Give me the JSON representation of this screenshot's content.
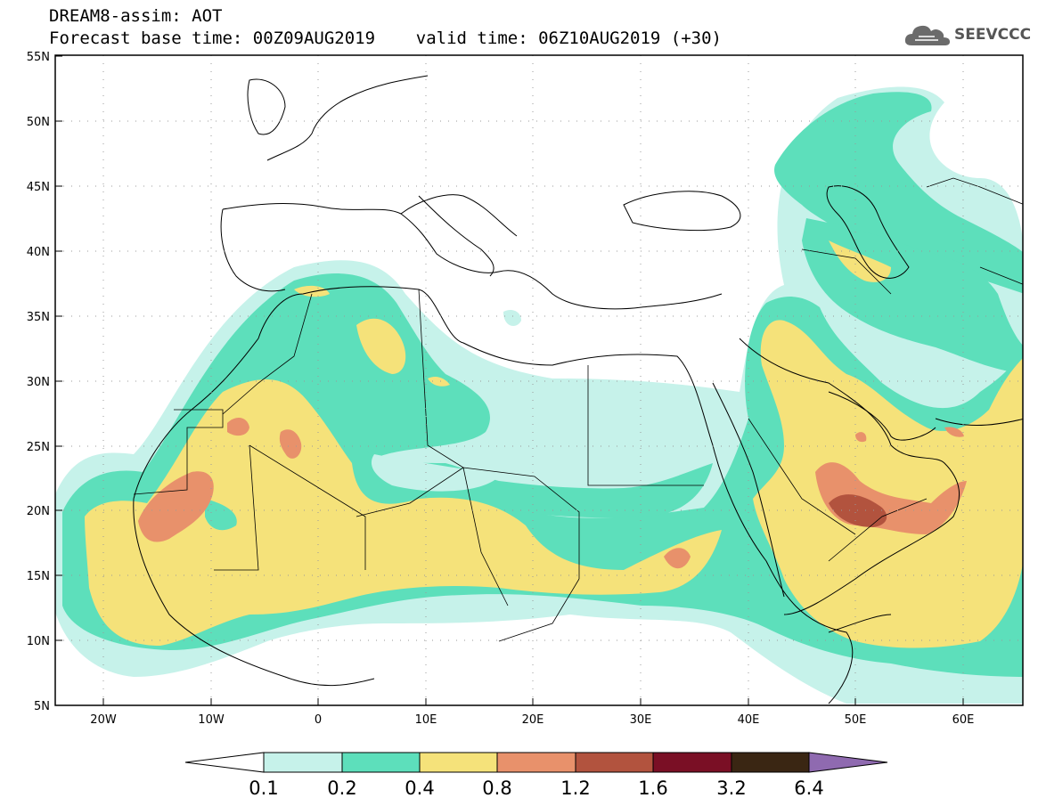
{
  "header": {
    "title_line1": "DREAM8-assim: AOT",
    "title_line2": "Forecast base time: 00Z09AUG2019    valid time: 06Z10AUG2019 (+30)",
    "logo_text": "SEEVCCC",
    "logo_icon": "cloud-icon"
  },
  "map": {
    "lat_labels": [
      "55N",
      "50N",
      "45N",
      "40N",
      "35N",
      "30N",
      "25N",
      "20N",
      "15N",
      "10N",
      "5N"
    ],
    "lon_labels": [
      "20W",
      "10W",
      "0",
      "10E",
      "20E",
      "30E",
      "40E",
      "50E",
      "60E"
    ],
    "lat_range": [
      5,
      55
    ],
    "lon_range": [
      -25,
      65
    ],
    "grid": "dotted"
  },
  "legend": {
    "labels": [
      "0.1",
      "0.2",
      "0.4",
      "0.8",
      "1.2",
      "1.6",
      "3.2",
      "6.4"
    ],
    "colors": {
      "c1": "#c6f2ea",
      "c2": "#5ddfbb",
      "c3": "#f5e27a",
      "c4": "#e8916b",
      "c5": "#b2533e",
      "c6": "#7a0f25",
      "c7": "#3a2613",
      "c8": "#8f6ab0",
      "under": "#ffffff"
    }
  }
}
